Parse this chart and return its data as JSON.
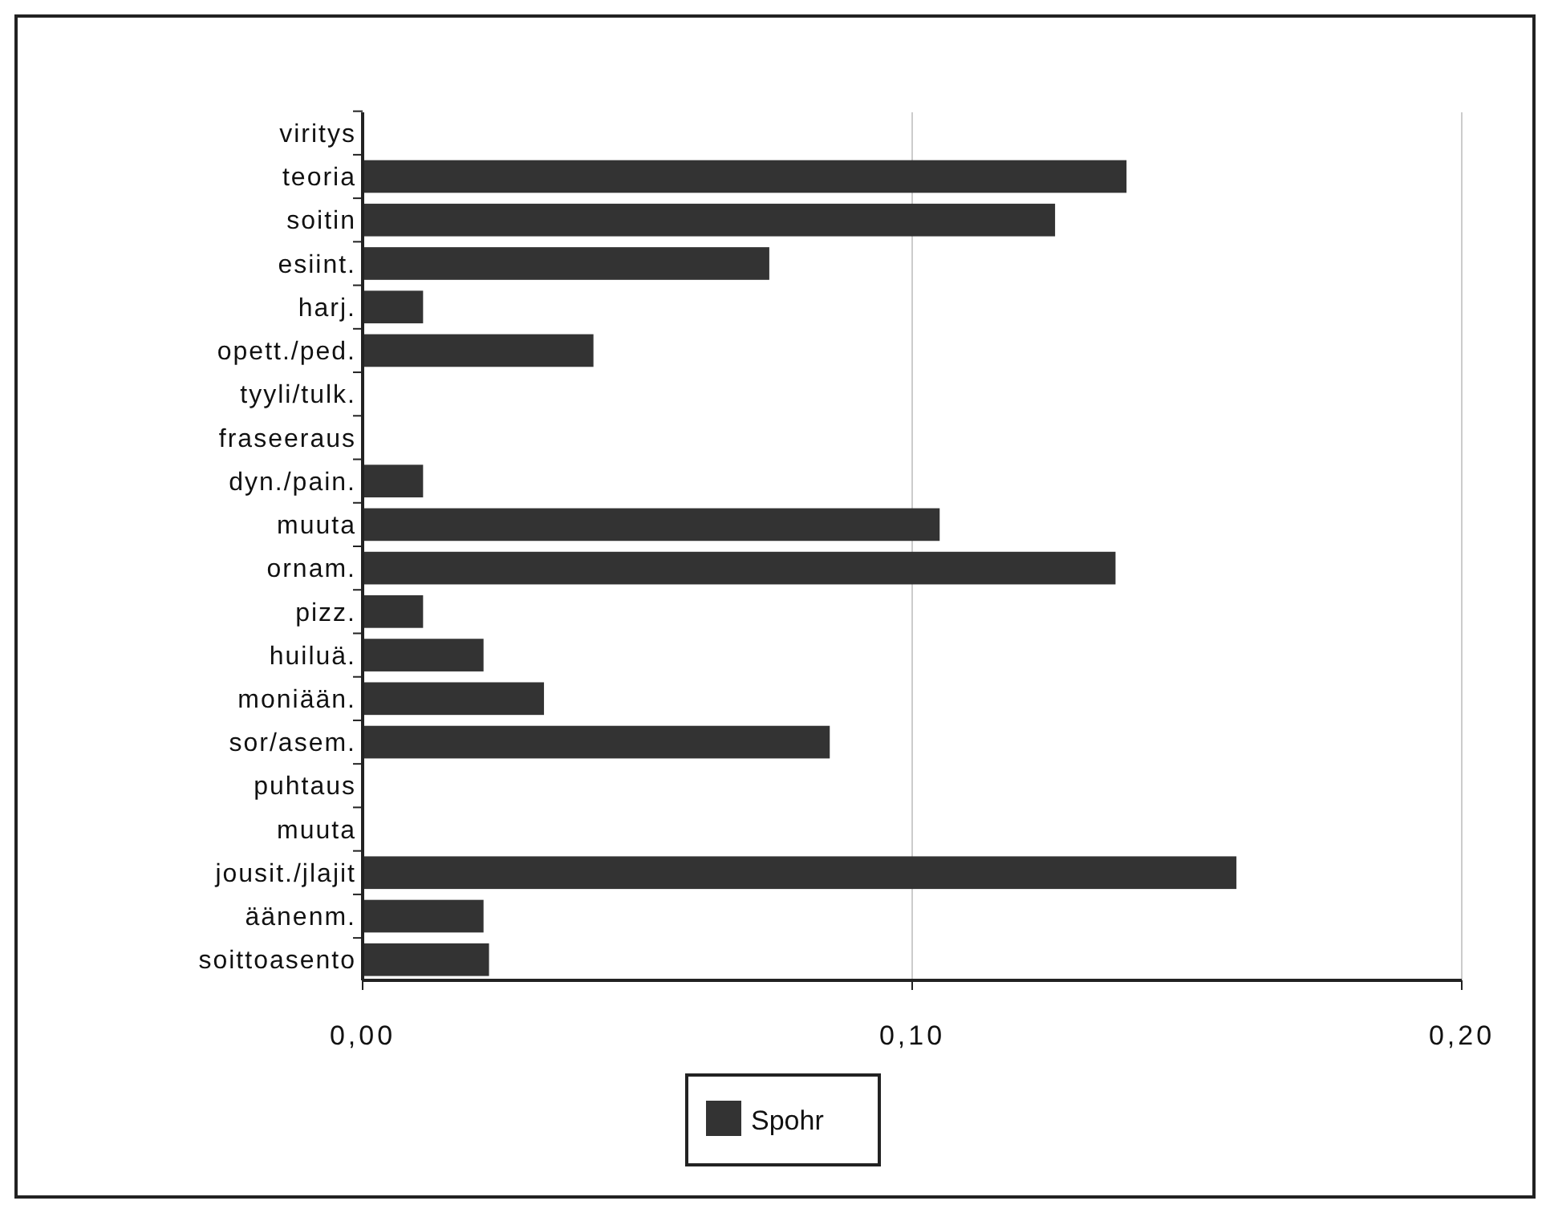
{
  "chart_data": {
    "type": "bar",
    "orientation": "horizontal",
    "categories": [
      "viritys",
      "teoria",
      "soitin",
      "esiint.",
      "harj.",
      "opett./ped.",
      "tyyli/tulk.",
      "fraseeraus",
      "dyn./pain.",
      "muuta",
      "ornam.",
      "pizz.",
      "huiluä.",
      "moniään.",
      "sor/asem.",
      "puhtaus",
      "muuta",
      "jousit./jlajit",
      "äänenm.",
      "soittoasento"
    ],
    "series": [
      {
        "name": "Spohr",
        "color": "#333333",
        "values": [
          0,
          0.139,
          0.126,
          0.074,
          0.011,
          0.042,
          0,
          0,
          0.011,
          0.105,
          0.137,
          0.011,
          0.022,
          0.033,
          0.085,
          0,
          0,
          0.159,
          0.022,
          0.023
        ]
      }
    ],
    "xlim": [
      0,
      0.2
    ],
    "xticks": [
      {
        "value": 0,
        "label": "0,00"
      },
      {
        "value": 0.1,
        "label": "0,10"
      },
      {
        "value": 0.2,
        "label": "0,20"
      }
    ],
    "grid": "x",
    "legend": "bottom"
  }
}
